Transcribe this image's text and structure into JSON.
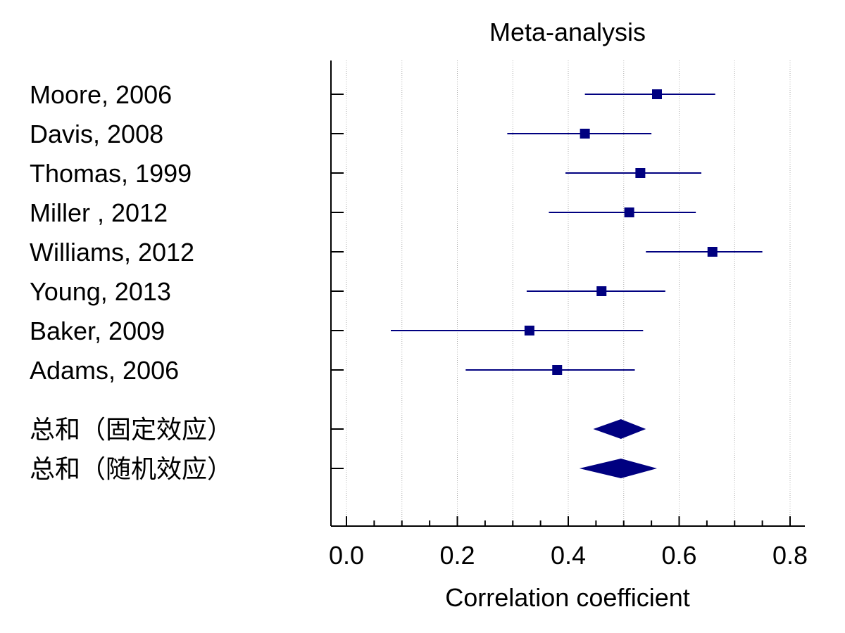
{
  "chart_data": {
    "type": "forest",
    "title": "Meta-analysis",
    "xlabel": "Correlation coefficient",
    "xlim": [
      -0.03,
      0.83
    ],
    "xticks": [
      "0.0",
      "0.2",
      "0.4",
      "0.6",
      "0.8"
    ],
    "grid": true,
    "studies": [
      {
        "label": "Moore, 2006",
        "estimate": 0.56,
        "lower": 0.43,
        "upper": 0.665
      },
      {
        "label": "Davis, 2008",
        "estimate": 0.43,
        "lower": 0.29,
        "upper": 0.55
      },
      {
        "label": "Thomas, 1999",
        "estimate": 0.53,
        "lower": 0.395,
        "upper": 0.64
      },
      {
        "label": "Miller , 2012",
        "estimate": 0.51,
        "lower": 0.365,
        "upper": 0.63
      },
      {
        "label": "Williams, 2012",
        "estimate": 0.66,
        "lower": 0.54,
        "upper": 0.75
      },
      {
        "label": "Young, 2013",
        "estimate": 0.46,
        "lower": 0.325,
        "upper": 0.575
      },
      {
        "label": "Baker, 2009",
        "estimate": 0.33,
        "lower": 0.08,
        "upper": 0.535
      },
      {
        "label": "Adams, 2006",
        "estimate": 0.38,
        "lower": 0.215,
        "upper": 0.52
      }
    ],
    "pooled": [
      {
        "label": "总和（固定效应）",
        "estimate": 0.495,
        "lower": 0.445,
        "upper": 0.54
      },
      {
        "label": "总和（随机效应）",
        "estimate": 0.495,
        "lower": 0.42,
        "upper": 0.56
      }
    ],
    "colors": {
      "marker": "#000080",
      "grid": "#b0b0b0",
      "axis": "#000000"
    }
  }
}
